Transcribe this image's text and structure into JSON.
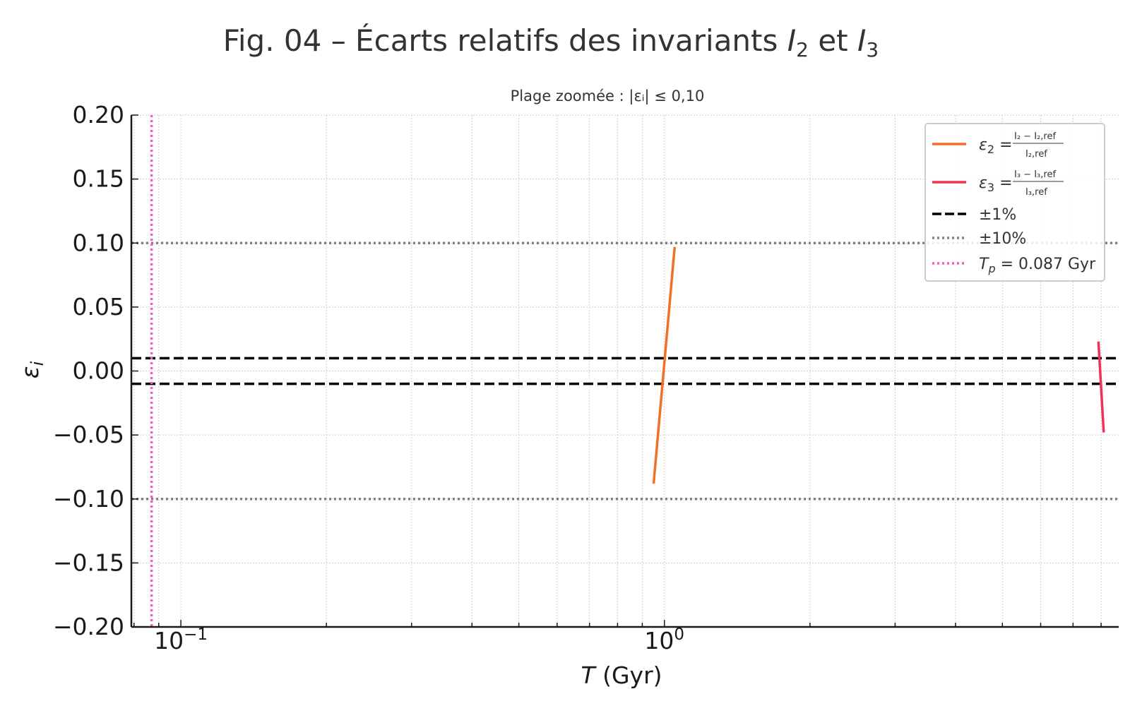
{
  "chart_data": {
    "type": "line",
    "title": {
      "prefix": "Fig. 04 – Écarts relatifs des invariants ",
      "var1": "I",
      "sub1": "2",
      "mid": " et ",
      "var2": "I",
      "sub2": "3"
    },
    "subtitle": "Plage zoomée : |εᵢ| ≤ 0,10",
    "xlabel": {
      "var": "T",
      "unit": " (Gyr)"
    },
    "ylabel": {
      "var": "ε",
      "sub": "i"
    },
    "x_scale": "log",
    "xlim": [
      0.079,
      8.7
    ],
    "ylim": [
      -0.2,
      0.2
    ],
    "x_major_ticks": [
      {
        "value": 0.1,
        "base": "10",
        "exp": "−1"
      },
      {
        "value": 1,
        "base": "10",
        "exp": "0"
      }
    ],
    "y_ticks": [
      {
        "value": 0.2,
        "label": "0.20"
      },
      {
        "value": 0.15,
        "label": "0.15"
      },
      {
        "value": 0.1,
        "label": "0.10"
      },
      {
        "value": 0.05,
        "label": "0.05"
      },
      {
        "value": 0.0,
        "label": "0.00"
      },
      {
        "value": -0.05,
        "label": "−0.05"
      },
      {
        "value": -0.1,
        "label": "−0.10"
      },
      {
        "value": -0.15,
        "label": "−0.15"
      },
      {
        "value": -0.2,
        "label": "−0.20"
      }
    ],
    "grid": true,
    "legend_position": "top-right",
    "series": [
      {
        "id": "eps2",
        "legend": {
          "eps": "ε",
          "eps_sub": "2",
          "num": "I₂ − I₂,ref",
          "den": "I₂,ref"
        },
        "color": "#f07028",
        "style": "solid",
        "x": [
          0.95,
          1.05
        ],
        "y": [
          -0.088,
          0.097
        ]
      },
      {
        "id": "eps3",
        "legend": {
          "eps": "ε",
          "eps_sub": "3",
          "num": "I₃ − I₃,ref",
          "den": "I₃,ref"
        },
        "color": "#ee3355",
        "style": "solid",
        "x": [
          7.9,
          8.1
        ],
        "y": [
          0.023,
          -0.048
        ]
      }
    ],
    "hlines": [
      {
        "id": "pm1",
        "legend": "±1%",
        "y": [
          0.01,
          -0.01
        ],
        "color": "#000000",
        "style": "dashed"
      },
      {
        "id": "pm10",
        "legend": "±10%",
        "y": [
          0.1,
          -0.1
        ],
        "color": "#808080",
        "style": "dotted"
      }
    ],
    "vlines": [
      {
        "id": "tp",
        "legend": {
          "var": "T",
          "sub": "p",
          "rest": " = 0.087 Gyr"
        },
        "x": 0.087,
        "color": "#ff55cc",
        "style": "dotted"
      }
    ]
  }
}
